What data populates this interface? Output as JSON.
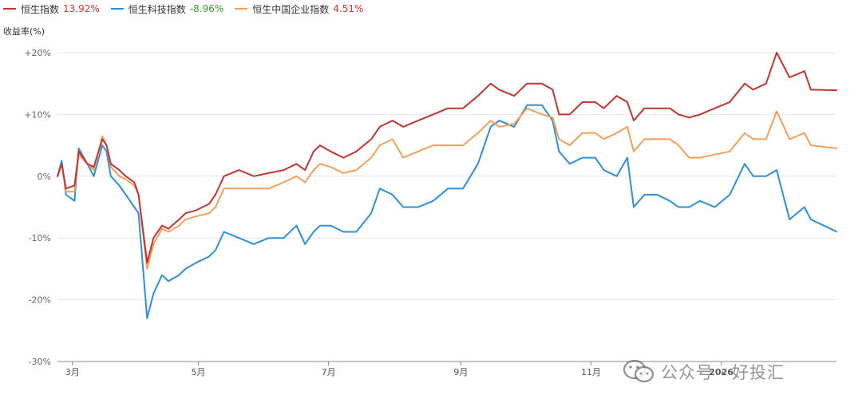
{
  "y_unit_label": "收益率(%)",
  "watermark": {
    "text": "公众号 · 好投汇",
    "icon": "wechat-icon"
  },
  "colors": {
    "hsi": "#c23531",
    "hstech": "#2f8fdb",
    "hscei": "#f49f5b",
    "grid": "#e6e6e6",
    "axis": "#888888",
    "positive": "#e0312b",
    "negative": "#3a9a2f"
  },
  "chart_data": {
    "type": "line",
    "title": "",
    "xlabel": "",
    "ylabel": "收益率(%)",
    "ylim": [
      -30,
      20
    ],
    "yticks": [
      20,
      10,
      0,
      -10,
      -20,
      -30
    ],
    "ytick_labels": [
      "+20%",
      "+10%",
      "0%",
      "-10%",
      "-20%",
      "-30%"
    ],
    "grid": true,
    "legend_position": "top-left",
    "x_domain": [
      "2025-02-24",
      "2026-02-24"
    ],
    "x_ticks": [
      {
        "date": "2025-03-03",
        "label": "3月"
      },
      {
        "date": "2025-05-01",
        "label": "5月"
      },
      {
        "date": "2025-07-01",
        "label": "7月"
      },
      {
        "date": "2025-09-01",
        "label": "9月"
      },
      {
        "date": "2025-11-01",
        "label": "11月"
      },
      {
        "date": "2026-01-01",
        "label": "2026"
      }
    ],
    "series": [
      {
        "name": "恒生指数",
        "final_label": "13.92%",
        "color": "#c23531",
        "points": [
          [
            "2025-02-24",
            0
          ],
          [
            "2025-02-26",
            2
          ],
          [
            "2025-02-28",
            -2
          ],
          [
            "2025-03-04",
            -1.5
          ],
          [
            "2025-03-06",
            4
          ],
          [
            "2025-03-10",
            2
          ],
          [
            "2025-03-13",
            1.5
          ],
          [
            "2025-03-17",
            6
          ],
          [
            "2025-03-19",
            5
          ],
          [
            "2025-03-21",
            2
          ],
          [
            "2025-03-25",
            1
          ],
          [
            "2025-03-28",
            0
          ],
          [
            "2025-04-01",
            -1
          ],
          [
            "2025-04-03",
            -3
          ],
          [
            "2025-04-07",
            -14
          ],
          [
            "2025-04-10",
            -10
          ],
          [
            "2025-04-14",
            -8
          ],
          [
            "2025-04-17",
            -8.5
          ],
          [
            "2025-04-22",
            -7
          ],
          [
            "2025-04-25",
            -6
          ],
          [
            "2025-04-30",
            -5.5
          ],
          [
            "2025-05-06",
            -4.5
          ],
          [
            "2025-05-09",
            -3
          ],
          [
            "2025-05-13",
            0
          ],
          [
            "2025-05-20",
            1
          ],
          [
            "2025-05-27",
            0
          ],
          [
            "2025-06-03",
            0.5
          ],
          [
            "2025-06-10",
            1
          ],
          [
            "2025-06-16",
            2
          ],
          [
            "2025-06-20",
            1
          ],
          [
            "2025-06-24",
            4
          ],
          [
            "2025-06-27",
            5
          ],
          [
            "2025-07-02",
            4
          ],
          [
            "2025-07-08",
            3
          ],
          [
            "2025-07-14",
            4
          ],
          [
            "2025-07-21",
            6
          ],
          [
            "2025-07-25",
            8
          ],
          [
            "2025-07-31",
            9
          ],
          [
            "2025-08-05",
            8
          ],
          [
            "2025-08-12",
            9
          ],
          [
            "2025-08-19",
            10
          ],
          [
            "2025-08-26",
            11
          ],
          [
            "2025-09-02",
            11
          ],
          [
            "2025-09-09",
            13
          ],
          [
            "2025-09-15",
            15
          ],
          [
            "2025-09-19",
            14
          ],
          [
            "2025-09-26",
            13
          ],
          [
            "2025-10-02",
            15
          ],
          [
            "2025-10-09",
            15
          ],
          [
            "2025-10-14",
            14
          ],
          [
            "2025-10-17",
            10
          ],
          [
            "2025-10-22",
            10
          ],
          [
            "2025-10-28",
            12
          ],
          [
            "2025-11-03",
            12
          ],
          [
            "2025-11-07",
            11
          ],
          [
            "2025-11-13",
            13
          ],
          [
            "2025-11-18",
            12
          ],
          [
            "2025-11-21",
            9
          ],
          [
            "2025-11-26",
            11
          ],
          [
            "2025-12-02",
            11
          ],
          [
            "2025-12-08",
            11
          ],
          [
            "2025-12-12",
            10
          ],
          [
            "2025-12-17",
            9.5
          ],
          [
            "2025-12-22",
            10
          ],
          [
            "2025-12-29",
            11
          ],
          [
            "2026-01-05",
            12
          ],
          [
            "2026-01-12",
            15
          ],
          [
            "2026-01-16",
            14
          ],
          [
            "2026-01-22",
            15
          ],
          [
            "2026-01-27",
            20
          ],
          [
            "2026-02-02",
            16
          ],
          [
            "2026-02-09",
            17
          ],
          [
            "2026-02-12",
            14
          ],
          [
            "2026-02-24",
            13.92
          ]
        ]
      },
      {
        "name": "恒生科技指数",
        "final_label": "-8.96%",
        "color": "#2f8fdb",
        "points": [
          [
            "2025-02-24",
            0
          ],
          [
            "2025-02-26",
            2.5
          ],
          [
            "2025-02-28",
            -3
          ],
          [
            "2025-03-04",
            -4
          ],
          [
            "2025-03-06",
            4.5
          ],
          [
            "2025-03-10",
            2
          ],
          [
            "2025-03-13",
            0
          ],
          [
            "2025-03-17",
            5
          ],
          [
            "2025-03-19",
            4
          ],
          [
            "2025-03-21",
            0
          ],
          [
            "2025-03-25",
            -1.5
          ],
          [
            "2025-03-28",
            -3
          ],
          [
            "2025-04-01",
            -5
          ],
          [
            "2025-04-03",
            -6
          ],
          [
            "2025-04-07",
            -23
          ],
          [
            "2025-04-10",
            -19
          ],
          [
            "2025-04-14",
            -16
          ],
          [
            "2025-04-17",
            -17
          ],
          [
            "2025-04-22",
            -16
          ],
          [
            "2025-04-25",
            -15
          ],
          [
            "2025-04-30",
            -14
          ],
          [
            "2025-05-06",
            -13
          ],
          [
            "2025-05-09",
            -12
          ],
          [
            "2025-05-13",
            -9
          ],
          [
            "2025-05-20",
            -10
          ],
          [
            "2025-05-27",
            -11
          ],
          [
            "2025-06-03",
            -10
          ],
          [
            "2025-06-10",
            -10
          ],
          [
            "2025-06-16",
            -8
          ],
          [
            "2025-06-20",
            -11
          ],
          [
            "2025-06-24",
            -9
          ],
          [
            "2025-06-27",
            -8
          ],
          [
            "2025-07-02",
            -8
          ],
          [
            "2025-07-08",
            -9
          ],
          [
            "2025-07-14",
            -9
          ],
          [
            "2025-07-21",
            -6
          ],
          [
            "2025-07-25",
            -2
          ],
          [
            "2025-07-31",
            -3
          ],
          [
            "2025-08-05",
            -5
          ],
          [
            "2025-08-12",
            -5
          ],
          [
            "2025-08-19",
            -4
          ],
          [
            "2025-08-26",
            -2
          ],
          [
            "2025-09-02",
            -2
          ],
          [
            "2025-09-09",
            2
          ],
          [
            "2025-09-15",
            8
          ],
          [
            "2025-09-19",
            9
          ],
          [
            "2025-09-26",
            8
          ],
          [
            "2025-10-02",
            11.5
          ],
          [
            "2025-10-09",
            11.5
          ],
          [
            "2025-10-14",
            9
          ],
          [
            "2025-10-17",
            4
          ],
          [
            "2025-10-22",
            2
          ],
          [
            "2025-10-28",
            3
          ],
          [
            "2025-11-03",
            3
          ],
          [
            "2025-11-07",
            1
          ],
          [
            "2025-11-13",
            0
          ],
          [
            "2025-11-18",
            3
          ],
          [
            "2025-11-21",
            -5
          ],
          [
            "2025-11-26",
            -3
          ],
          [
            "2025-12-02",
            -3
          ],
          [
            "2025-12-08",
            -4
          ],
          [
            "2025-12-12",
            -5
          ],
          [
            "2025-12-17",
            -5
          ],
          [
            "2025-12-22",
            -4
          ],
          [
            "2025-12-29",
            -5
          ],
          [
            "2026-01-05",
            -3
          ],
          [
            "2026-01-12",
            2
          ],
          [
            "2026-01-16",
            0
          ],
          [
            "2026-01-22",
            0
          ],
          [
            "2026-01-27",
            1
          ],
          [
            "2026-02-02",
            -7
          ],
          [
            "2026-02-09",
            -5
          ],
          [
            "2026-02-12",
            -7
          ],
          [
            "2026-02-24",
            -8.96
          ]
        ]
      },
      {
        "name": "恒生中国企业指数",
        "final_label": "4.51%",
        "color": "#f49f5b",
        "points": [
          [
            "2025-02-24",
            0
          ],
          [
            "2025-02-26",
            2
          ],
          [
            "2025-02-28",
            -2.5
          ],
          [
            "2025-03-04",
            -2.5
          ],
          [
            "2025-03-06",
            3.5
          ],
          [
            "2025-03-10",
            2
          ],
          [
            "2025-03-13",
            1
          ],
          [
            "2025-03-17",
            6.5
          ],
          [
            "2025-03-19",
            5
          ],
          [
            "2025-03-21",
            1.5
          ],
          [
            "2025-03-25",
            0
          ],
          [
            "2025-03-28",
            -0.5
          ],
          [
            "2025-04-01",
            -1.5
          ],
          [
            "2025-04-03",
            -3
          ],
          [
            "2025-04-07",
            -15
          ],
          [
            "2025-04-10",
            -11
          ],
          [
            "2025-04-14",
            -8.5
          ],
          [
            "2025-04-17",
            -9
          ],
          [
            "2025-04-22",
            -8
          ],
          [
            "2025-04-25",
            -7
          ],
          [
            "2025-04-30",
            -6.5
          ],
          [
            "2025-05-06",
            -6
          ],
          [
            "2025-05-09",
            -5
          ],
          [
            "2025-05-13",
            -2
          ],
          [
            "2025-05-20",
            -2
          ],
          [
            "2025-05-27",
            -2
          ],
          [
            "2025-06-03",
            -2
          ],
          [
            "2025-06-10",
            -1
          ],
          [
            "2025-06-16",
            0
          ],
          [
            "2025-06-20",
            -1
          ],
          [
            "2025-06-24",
            1
          ],
          [
            "2025-06-27",
            2
          ],
          [
            "2025-07-02",
            1.5
          ],
          [
            "2025-07-08",
            0.5
          ],
          [
            "2025-07-14",
            1
          ],
          [
            "2025-07-21",
            3
          ],
          [
            "2025-07-25",
            5
          ],
          [
            "2025-07-31",
            6
          ],
          [
            "2025-08-05",
            3
          ],
          [
            "2025-08-12",
            4
          ],
          [
            "2025-08-19",
            5
          ],
          [
            "2025-08-26",
            5
          ],
          [
            "2025-09-02",
            5
          ],
          [
            "2025-09-09",
            7
          ],
          [
            "2025-09-15",
            9
          ],
          [
            "2025-09-19",
            8
          ],
          [
            "2025-09-26",
            8.5
          ],
          [
            "2025-10-02",
            11
          ],
          [
            "2025-10-09",
            10
          ],
          [
            "2025-10-14",
            9.5
          ],
          [
            "2025-10-17",
            6
          ],
          [
            "2025-10-22",
            5
          ],
          [
            "2025-10-28",
            7
          ],
          [
            "2025-11-03",
            7
          ],
          [
            "2025-11-07",
            6
          ],
          [
            "2025-11-13",
            7
          ],
          [
            "2025-11-18",
            8
          ],
          [
            "2025-11-21",
            4
          ],
          [
            "2025-11-26",
            6
          ],
          [
            "2025-12-02",
            6
          ],
          [
            "2025-12-08",
            6
          ],
          [
            "2025-12-12",
            5
          ],
          [
            "2025-12-17",
            3
          ],
          [
            "2025-12-22",
            3
          ],
          [
            "2025-12-29",
            3.5
          ],
          [
            "2026-01-05",
            4
          ],
          [
            "2026-01-12",
            7
          ],
          [
            "2026-01-16",
            6
          ],
          [
            "2026-01-22",
            6
          ],
          [
            "2026-01-27",
            10.5
          ],
          [
            "2026-02-02",
            6
          ],
          [
            "2026-02-09",
            7
          ],
          [
            "2026-02-12",
            5
          ],
          [
            "2026-02-24",
            4.51
          ]
        ]
      }
    ]
  }
}
